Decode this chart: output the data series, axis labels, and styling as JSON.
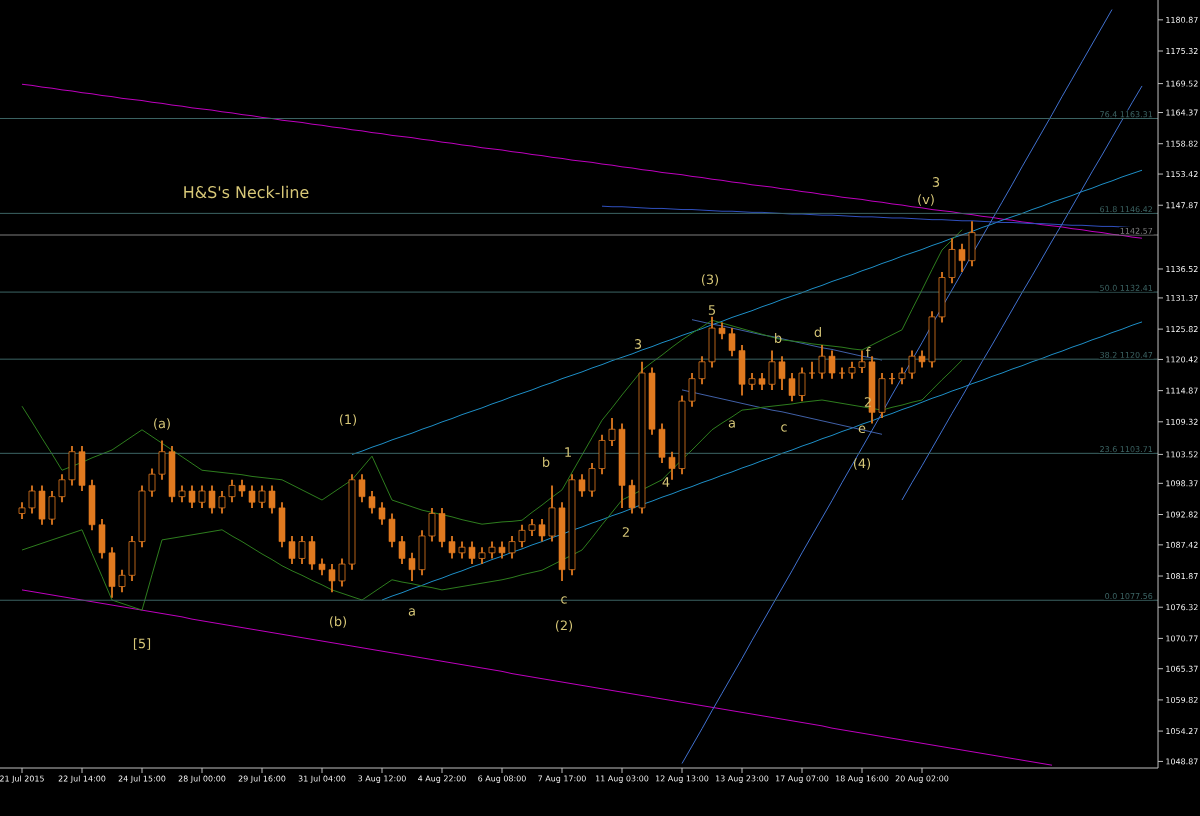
{
  "chart_data": {
    "type": "candlestick",
    "color": "#e07a20",
    "categories": [
      "21 Jul 2015",
      null,
      null,
      null,
      null,
      null,
      "22 Jul 14:00",
      null,
      null,
      null,
      null,
      null,
      "24 Jul 15:00",
      null,
      null,
      null,
      null,
      null,
      "28 Jul 00:00",
      null,
      null,
      null,
      null,
      null,
      "29 Jul 16:00",
      null,
      null,
      null,
      null,
      null,
      "31 Jul 04:00",
      null,
      null,
      null,
      null,
      null,
      "3 Aug 12:00",
      null,
      null,
      null,
      null,
      null,
      "4 Aug 22:00",
      null,
      null,
      null,
      null,
      null,
      "6 Aug 08:00",
      null,
      null,
      null,
      null,
      null,
      "7 Aug 17:00",
      null,
      null,
      null,
      null,
      null,
      "11 Aug 03:00",
      null,
      null,
      null,
      null,
      null,
      "12 Aug 13:00",
      null,
      null,
      null,
      null,
      null,
      "13 Aug 23:00",
      null,
      null,
      null,
      null,
      null,
      "17 Aug 07:00",
      null,
      null,
      null,
      null,
      null,
      "18 Aug 16:00",
      null,
      null,
      null,
      null,
      null,
      "20 Aug 02:00",
      null,
      null,
      null,
      null,
      null,
      null,
      null,
      null,
      null,
      null,
      null,
      null,
      null,
      null,
      null,
      null,
      null,
      null,
      null,
      null,
      null,
      null
    ],
    "ohlc": [
      [
        1093,
        1095,
        1092,
        1094
      ],
      [
        1094,
        1098,
        1093,
        1097
      ],
      [
        1097,
        1098,
        1091,
        1092
      ],
      [
        1092,
        1097,
        1091,
        1096
      ],
      [
        1096,
        1100,
        1095,
        1099
      ],
      [
        1099,
        1105,
        1098,
        1104
      ],
      [
        1104,
        1105,
        1097,
        1098
      ],
      [
        1098,
        1099,
        1090,
        1091
      ],
      [
        1091,
        1092,
        1085,
        1086
      ],
      [
        1086,
        1087,
        1078,
        1080
      ],
      [
        1080,
        1083,
        1079,
        1082
      ],
      [
        1082,
        1089,
        1081,
        1088
      ],
      [
        1088,
        1098,
        1087,
        1097
      ],
      [
        1097,
        1101,
        1096,
        1100
      ],
      [
        1100,
        1106,
        1099,
        1104
      ],
      [
        1104,
        1105,
        1095,
        1096
      ],
      [
        1096,
        1098,
        1095,
        1097
      ],
      [
        1097,
        1098,
        1094,
        1095
      ],
      [
        1095,
        1098,
        1094,
        1097
      ],
      [
        1097,
        1098,
        1093,
        1094
      ],
      [
        1094,
        1097,
        1093,
        1096
      ],
      [
        1096,
        1099,
        1095,
        1098
      ],
      [
        1098,
        1099,
        1096,
        1097
      ],
      [
        1097,
        1098,
        1094,
        1095
      ],
      [
        1095,
        1098,
        1094,
        1097
      ],
      [
        1097,
        1098,
        1093,
        1094
      ],
      [
        1094,
        1095,
        1087,
        1088
      ],
      [
        1088,
        1089,
        1084,
        1085
      ],
      [
        1085,
        1089,
        1084,
        1088
      ],
      [
        1088,
        1089,
        1083,
        1084
      ],
      [
        1084,
        1085,
        1082,
        1083
      ],
      [
        1083,
        1084,
        1079,
        1081
      ],
      [
        1081,
        1085,
        1080,
        1084
      ],
      [
        1084,
        1100,
        1083,
        1099
      ],
      [
        1099,
        1100,
        1095,
        1096
      ],
      [
        1096,
        1097,
        1093,
        1094
      ],
      [
        1094,
        1095,
        1091,
        1092
      ],
      [
        1092,
        1093,
        1087,
        1088
      ],
      [
        1088,
        1089,
        1084,
        1085
      ],
      [
        1085,
        1086,
        1081,
        1083
      ],
      [
        1083,
        1090,
        1082,
        1089
      ],
      [
        1089,
        1094,
        1088,
        1093
      ],
      [
        1093,
        1094,
        1087,
        1088
      ],
      [
        1088,
        1089,
        1085,
        1086
      ],
      [
        1086,
        1088,
        1085,
        1087
      ],
      [
        1087,
        1088,
        1084,
        1085
      ],
      [
        1085,
        1087,
        1084,
        1086
      ],
      [
        1086,
        1088,
        1085,
        1087
      ],
      [
        1087,
        1088,
        1085,
        1086
      ],
      [
        1086,
        1089,
        1085,
        1088
      ],
      [
        1088,
        1091,
        1087,
        1090
      ],
      [
        1090,
        1092,
        1089,
        1091
      ],
      [
        1091,
        1092,
        1088,
        1089
      ],
      [
        1089,
        1098,
        1088,
        1094
      ],
      [
        1094,
        1095,
        1081,
        1083
      ],
      [
        1083,
        1100,
        1082,
        1099
      ],
      [
        1099,
        1100,
        1096,
        1097
      ],
      [
        1097,
        1102,
        1096,
        1101
      ],
      [
        1101,
        1107,
        1100,
        1106
      ],
      [
        1106,
        1110,
        1105,
        1108
      ],
      [
        1108,
        1109,
        1094,
        1098
      ],
      [
        1098,
        1099,
        1093,
        1094
      ],
      [
        1094,
        1120,
        1093,
        1118
      ],
      [
        1118,
        1119,
        1107,
        1108
      ],
      [
        1108,
        1109,
        1102,
        1103
      ],
      [
        1103,
        1104,
        1099,
        1101
      ],
      [
        1101,
        1114,
        1100,
        1113
      ],
      [
        1113,
        1118,
        1112,
        1117
      ],
      [
        1117,
        1121,
        1116,
        1120
      ],
      [
        1120,
        1128,
        1119,
        1126
      ],
      [
        1126,
        1127,
        1124,
        1125
      ],
      [
        1125,
        1126,
        1121,
        1122
      ],
      [
        1122,
        1123,
        1114,
        1116
      ],
      [
        1116,
        1118,
        1115,
        1117
      ],
      [
        1117,
        1118,
        1115,
        1116
      ],
      [
        1116,
        1122,
        1115,
        1120
      ],
      [
        1120,
        1121,
        1115,
        1117
      ],
      [
        1117,
        1118,
        1113,
        1114
      ],
      [
        1114,
        1119,
        1113,
        1118
      ],
      [
        1118,
        1120,
        1117,
        1118
      ],
      [
        1118,
        1123,
        1117,
        1121
      ],
      [
        1121,
        1122,
        1117,
        1118
      ],
      [
        1118,
        1119,
        1117,
        1118
      ],
      [
        1118,
        1120,
        1117,
        1119
      ],
      [
        1119,
        1122,
        1118,
        1120
      ],
      [
        1120,
        1121,
        1109,
        1111
      ],
      [
        1111,
        1118,
        1110,
        1117
      ],
      [
        1117,
        1118,
        1116,
        1117
      ],
      [
        1117,
        1119,
        1116,
        1118
      ],
      [
        1118,
        1122,
        1117,
        1121
      ],
      [
        1121,
        1122,
        1119,
        1120
      ],
      [
        1120,
        1129,
        1119,
        1128
      ],
      [
        1128,
        1136,
        1127,
        1135
      ],
      [
        1135,
        1142,
        1134,
        1140
      ],
      [
        1140,
        1141,
        1136,
        1138
      ],
      [
        1138,
        1145,
        1137,
        1143
      ],
      null,
      null,
      null,
      null,
      null,
      null,
      null,
      null,
      null,
      null,
      null,
      null,
      null,
      null,
      null,
      null,
      null
    ],
    "series": [
      {
        "type": "line",
        "color": "#c000c0",
        "values": [
          1169.4,
          1169.2,
          1168.9,
          1168.7,
          1168.4,
          1168.2,
          1167.9,
          1167.7,
          1167.4,
          1167.2,
          1166.9,
          1166.7,
          1166.5,
          1166.2,
          1166.0,
          1165.7,
          1165.5,
          1165.2,
          1165.0,
          1164.8,
          1164.5,
          1164.3,
          1164.0,
          1163.8,
          1163.5,
          1163.3,
          1163.0,
          1162.8,
          1162.6,
          1162.3,
          1162.1,
          1161.8,
          1161.6,
          1161.3,
          1161.1,
          1160.8,
          1160.6,
          1160.3,
          1160.1,
          1159.9,
          1159.6,
          1159.4,
          1159.1,
          1158.9,
          1158.6,
          1158.4,
          1158.1,
          1157.9,
          1157.7,
          1157.4,
          1157.2,
          1156.9,
          1156.7,
          1156.4,
          1156.2,
          1155.9,
          1155.7,
          1155.5,
          1155.2,
          1155.0,
          1154.7,
          1154.5,
          1154.2,
          1154.0,
          1153.7,
          1153.5,
          1153.3,
          1153.0,
          1152.8,
          1152.5,
          1152.3,
          1152.0,
          1151.8,
          1151.5,
          1151.3,
          1151.1,
          1150.8,
          1150.6,
          1150.3,
          1150.1,
          1149.8,
          1149.6,
          1149.3,
          1149.1,
          1148.9,
          1148.6,
          1148.4,
          1148.1,
          1147.9,
          1147.6,
          1147.4,
          1147.1,
          1146.9,
          1146.7,
          1146.4,
          1146.2,
          1145.9,
          1145.7,
          1145.4,
          1145.2,
          1144.9,
          1144.7,
          1144.4,
          1144.2,
          1144.0,
          1143.7,
          1143.5,
          1143.2,
          1143.0,
          1142.7,
          1142.5,
          1142.2,
          1142.0
        ]
      },
      {
        "type": "line",
        "color": "#c000c0",
        "values": [
          1079.4,
          1079.1,
          1078.8,
          1078.5,
          1078.2,
          1077.9,
          1077.6,
          1077.3,
          1077.0,
          1076.7,
          1076.4,
          1076.1,
          1075.8,
          1075.5,
          1075.2,
          1074.9,
          1074.6,
          1074.2,
          1073.9,
          1073.6,
          1073.3,
          1073.0,
          1072.7,
          1072.4,
          1072.1,
          1071.8,
          1071.5,
          1071.2,
          1070.9,
          1070.6,
          1070.3,
          1070.0,
          1069.7,
          1069.4,
          1069.1,
          1068.8,
          1068.5,
          1068.2,
          1067.9,
          1067.6,
          1067.3,
          1067.0,
          1066.7,
          1066.4,
          1066.1,
          1065.8,
          1065.5,
          1065.2,
          1064.9,
          1064.5,
          1064.2,
          1063.9,
          1063.6,
          1063.3,
          1063.0,
          1062.7,
          1062.4,
          1062.1,
          1061.8,
          1061.5,
          1061.2,
          1060.9,
          1060.6,
          1060.3,
          1060.0,
          1059.7,
          1059.4,
          1059.1,
          1058.8,
          1058.5,
          1058.2,
          1057.9,
          1057.6,
          1057.3,
          1057.0,
          1056.7,
          1056.4,
          1056.1,
          1055.8,
          1055.5,
          1055.2,
          1054.8,
          1054.5,
          1054.2,
          1053.9,
          1053.6,
          1053.3,
          1053.0,
          1052.7,
          1052.4,
          1052.1,
          1051.8,
          1051.5,
          1051.2,
          1050.9,
          1050.6,
          1050.3,
          1050.0,
          1049.7,
          1049.4,
          1049.1,
          1048.8,
          1048.5,
          1048.2,
          null,
          null,
          null,
          null,
          null,
          null,
          null,
          null,
          null
        ]
      },
      {
        "type": "line",
        "color": "#1e90c8",
        "values": [
          null,
          null,
          null,
          null,
          null,
          null,
          null,
          null,
          null,
          null,
          null,
          null,
          null,
          null,
          null,
          null,
          null,
          null,
          null,
          null,
          null,
          null,
          null,
          null,
          null,
          null,
          null,
          null,
          null,
          null,
          null,
          null,
          null,
          1103.5,
          1104.1,
          1104.8,
          1105.4,
          1106.1,
          1106.7,
          1107.3,
          1108.0,
          1108.6,
          1109.3,
          1109.9,
          1110.6,
          1111.2,
          1111.8,
          1112.5,
          1113.1,
          1113.8,
          1114.4,
          1115.0,
          1115.7,
          1116.3,
          1117.0,
          1117.6,
          1118.2,
          1118.9,
          1119.5,
          1120.2,
          1120.8,
          1121.4,
          1122.1,
          1122.7,
          1123.4,
          1124.0,
          1124.7,
          1125.3,
          1125.9,
          1126.6,
          1127.2,
          1127.9,
          1128.5,
          1129.1,
          1129.8,
          1130.4,
          1131.1,
          1131.7,
          1132.3,
          1133.0,
          1133.6,
          1134.3,
          1134.9,
          1135.5,
          1136.2,
          1136.8,
          1137.5,
          1138.1,
          1138.8,
          1139.4,
          1140.0,
          1140.7,
          1141.3,
          1142.0,
          1142.6,
          1143.2,
          1143.9,
          1144.5,
          1145.2,
          1145.8,
          1146.4,
          1147.1,
          1147.7,
          1148.4,
          1149.0,
          1149.6,
          1150.3,
          1150.9,
          1151.6,
          1152.2,
          1152.9,
          1153.5,
          1154.1
        ]
      },
      {
        "type": "line",
        "color": "#1e90c8",
        "values": [
          null,
          null,
          null,
          null,
          null,
          null,
          null,
          null,
          null,
          null,
          null,
          null,
          null,
          null,
          null,
          null,
          null,
          null,
          null,
          null,
          null,
          null,
          null,
          null,
          null,
          null,
          null,
          null,
          null,
          null,
          null,
          null,
          null,
          null,
          null,
          null,
          1077.6,
          1078.3,
          1078.9,
          1079.6,
          1080.2,
          1080.9,
          1081.5,
          1082.2,
          1082.8,
          1083.5,
          1084.1,
          1084.8,
          1085.4,
          1086.1,
          1086.7,
          1087.4,
          1088.0,
          1088.7,
          1089.3,
          1090.0,
          1090.6,
          1091.3,
          1091.9,
          1092.6,
          1093.2,
          1093.9,
          1094.6,
          1095.2,
          1095.9,
          1096.5,
          1097.2,
          1097.8,
          1098.5,
          1099.1,
          1099.8,
          1100.4,
          1101.1,
          1101.7,
          1102.4,
          1103.0,
          1103.7,
          1104.3,
          1105.0,
          1105.6,
          1106.3,
          1106.9,
          1107.6,
          1108.2,
          1108.9,
          1109.5,
          1110.2,
          1110.8,
          1111.5,
          1112.1,
          1112.8,
          1113.5,
          1114.1,
          1114.8,
          1115.4,
          1116.1,
          1116.7,
          1117.4,
          1118.0,
          1118.7,
          1119.3,
          1120.0,
          1120.6,
          1121.3,
          1121.9,
          1122.6,
          1123.2,
          1123.9,
          1124.5,
          1125.2,
          1125.8,
          1126.5,
          1127.1
        ]
      },
      {
        "type": "line",
        "color": "#4060a8",
        "values": [
          null,
          null,
          null,
          null,
          null,
          null,
          null,
          null,
          null,
          null,
          null,
          null,
          null,
          null,
          null,
          null,
          null,
          null,
          null,
          null,
          null,
          null,
          null,
          null,
          null,
          null,
          null,
          null,
          null,
          null,
          null,
          null,
          null,
          null,
          null,
          null,
          null,
          null,
          null,
          null,
          null,
          null,
          null,
          null,
          null,
          null,
          null,
          null,
          null,
          null,
          null,
          null,
          null,
          null,
          null,
          null,
          null,
          null,
          null,
          null,
          null,
          null,
          null,
          null,
          null,
          null,
          null,
          1127.5,
          1127.1,
          1126.7,
          1126.4,
          1126.0,
          1125.6,
          1125.2,
          1124.8,
          1124.5,
          1124.1,
          1123.7,
          1123.3,
          1122.9,
          1122.5,
          1122.2,
          1121.8,
          1121.4,
          1121.0,
          1120.7,
          1120.3,
          null,
          null,
          null,
          null,
          null,
          null,
          null,
          null,
          null,
          null,
          null,
          null,
          null,
          null,
          null,
          null,
          null,
          null,
          null,
          null,
          null,
          null,
          null,
          null,
          null,
          null
        ]
      },
      {
        "type": "line",
        "color": "#4060a8",
        "values": [
          null,
          null,
          null,
          null,
          null,
          null,
          null,
          null,
          null,
          null,
          null,
          null,
          null,
          null,
          null,
          null,
          null,
          null,
          null,
          null,
          null,
          null,
          null,
          null,
          null,
          null,
          null,
          null,
          null,
          null,
          null,
          null,
          null,
          null,
          null,
          null,
          null,
          null,
          null,
          null,
          null,
          null,
          null,
          null,
          null,
          null,
          null,
          null,
          null,
          null,
          null,
          null,
          null,
          null,
          null,
          null,
          null,
          null,
          null,
          null,
          null,
          null,
          null,
          null,
          null,
          null,
          1115.0,
          1114.6,
          1114.2,
          1113.8,
          1113.4,
          1113.0,
          1112.6,
          1112.2,
          1111.8,
          1111.4,
          1111.1,
          1110.7,
          1110.3,
          1109.9,
          1109.5,
          1109.1,
          1108.7,
          1108.3,
          1107.9,
          1107.5,
          1107.1,
          null,
          null,
          null,
          null,
          null,
          null,
          null,
          null,
          null,
          null,
          null,
          null,
          null,
          null,
          null,
          null,
          null,
          null,
          null,
          null,
          null,
          null,
          null,
          null,
          null,
          null
        ]
      },
      {
        "type": "line",
        "color": "#3050c0",
        "values": [
          null,
          null,
          null,
          null,
          null,
          null,
          null,
          null,
          null,
          null,
          null,
          null,
          null,
          null,
          null,
          null,
          null,
          null,
          null,
          null,
          null,
          null,
          null,
          null,
          null,
          null,
          null,
          null,
          null,
          null,
          null,
          null,
          null,
          null,
          null,
          null,
          null,
          null,
          null,
          null,
          null,
          null,
          null,
          null,
          null,
          null,
          null,
          null,
          null,
          null,
          null,
          null,
          null,
          null,
          null,
          null,
          null,
          null,
          1147.7,
          1147.6,
          1147.6,
          1147.5,
          1147.4,
          1147.3,
          1147.3,
          1147.2,
          1147.1,
          1147.1,
          1147.0,
          1146.9,
          1146.8,
          1146.8,
          1146.7,
          1146.6,
          1146.6,
          1146.5,
          1146.4,
          1146.3,
          1146.3,
          1146.2,
          1146.1,
          1146.1,
          1146.0,
          1145.9,
          1145.8,
          1145.8,
          1145.7,
          1145.6,
          1145.6,
          1145.5,
          1145.4,
          1145.3,
          1145.3,
          1145.2,
          1145.1,
          1145.1,
          1145.0,
          1144.9,
          1144.8,
          1144.8,
          1144.7,
          1144.6,
          1144.6,
          1144.5,
          1144.4,
          1144.3,
          1144.3,
          1144.2,
          1144.1,
          1144.1,
          1144.0,
          1143.9,
          1143.8
        ]
      },
      {
        "type": "line",
        "color": "#4070d0",
        "values": [
          null,
          null,
          null,
          null,
          null,
          null,
          null,
          null,
          null,
          null,
          null,
          null,
          null,
          null,
          null,
          null,
          null,
          null,
          null,
          null,
          null,
          null,
          null,
          null,
          null,
          null,
          null,
          null,
          null,
          null,
          null,
          null,
          null,
          null,
          null,
          null,
          null,
          null,
          null,
          null,
          null,
          null,
          null,
          null,
          null,
          null,
          null,
          null,
          null,
          null,
          null,
          null,
          null,
          null,
          null,
          null,
          null,
          null,
          null,
          null,
          null,
          null,
          null,
          null,
          null,
          null,
          1048.5,
          1051.6,
          1054.7,
          1057.9,
          1061.0,
          1064.1,
          1067.2,
          1070.4,
          1073.5,
          1076.6,
          1079.7,
          1082.8,
          1086.0,
          1089.1,
          1092.2,
          1095.3,
          1098.5,
          1101.6,
          1104.7,
          1107.8,
          1110.9,
          1114.1,
          1117.2,
          1120.3,
          1123.4,
          1126.6,
          1129.7,
          1132.8,
          1135.9,
          1139.1,
          1142.2,
          1145.3,
          1148.4,
          1151.5,
          1154.7,
          1157.8,
          1160.9,
          1164.0,
          1167.2,
          1170.3,
          1173.4,
          1176.5,
          1179.6,
          1182.7,
          null,
          null,
          null
        ]
      },
      {
        "type": "line",
        "color": "#4070d0",
        "values": [
          null,
          null,
          null,
          null,
          null,
          null,
          null,
          null,
          null,
          null,
          null,
          null,
          null,
          null,
          null,
          null,
          null,
          null,
          null,
          null,
          null,
          null,
          null,
          null,
          null,
          null,
          null,
          null,
          null,
          null,
          null,
          null,
          null,
          null,
          null,
          null,
          null,
          null,
          null,
          null,
          null,
          null,
          null,
          null,
          null,
          null,
          null,
          null,
          null,
          null,
          null,
          null,
          null,
          null,
          null,
          null,
          null,
          null,
          null,
          null,
          null,
          null,
          null,
          null,
          null,
          null,
          null,
          null,
          null,
          null,
          null,
          null,
          null,
          null,
          null,
          null,
          null,
          null,
          null,
          null,
          null,
          null,
          null,
          null,
          null,
          null,
          null,
          null,
          1095.4,
          1098.5,
          1101.5,
          1104.6,
          1107.7,
          1110.8,
          1113.8,
          1116.9,
          1120.0,
          1123.0,
          1126.1,
          1129.2,
          1132.3,
          1135.3,
          1138.4,
          1141.5,
          1144.5,
          1147.6,
          1150.7,
          1153.8,
          1156.8,
          1159.9,
          1163.0,
          1166.1,
          1169.1
        ]
      },
      {
        "type": "line",
        "color": "#2e7d1e",
        "values": [
          1112.1,
          1109.3,
          1106.4,
          1103.6,
          1100.7,
          1101.4,
          1102.1,
          1102.9,
          1103.6,
          1104.3,
          1105.5,
          1106.7,
          1107.9,
          1106.7,
          1105.5,
          1104.3,
          1103.1,
          1101.9,
          1100.7,
          1100.5,
          1100.3,
          1100.1,
          1099.9,
          1099.6,
          1099.4,
          1099.2,
          1099.0,
          1098.1,
          1097.2,
          1096.3,
          1095.4,
          1096.6,
          1097.8,
          1099.0,
          1101.1,
          1103.2,
          1099.3,
          1095.4,
          1094.8,
          1094.2,
          1093.6,
          1093.2,
          1092.8,
          1092.4,
          1091.9,
          1091.5,
          1091.1,
          1091.3,
          1091.5,
          1091.6,
          1091.8,
          1093.2,
          1094.5,
          1095.9,
          1097.2,
          1100.3,
          1103.4,
          1106.5,
          1109.6,
          1111.8,
          1114.1,
          1116.3,
          1118.5,
          1119.9,
          1121.2,
          1122.6,
          1123.9,
          1125.1,
          1126.2,
          1127.4,
          1126.9,
          1126.4,
          1125.9,
          1125.4,
          1124.9,
          1124.4,
          1123.9,
          1123.7,
          1123.5,
          1123.2,
          1123.0,
          1122.8,
          1122.6,
          1122.3,
          1122.1,
          1123.0,
          1123.9,
          1124.8,
          1125.7,
          1129.3,
          1132.8,
          1136.4,
          1139.9,
          1141.7,
          1143.5,
          null,
          null,
          null,
          null,
          null,
          null,
          null,
          null,
          null,
          null,
          null,
          null,
          null,
          null,
          null,
          null,
          null,
          null
        ]
      },
      {
        "type": "line",
        "color": "#2e7d1e",
        "values": [
          1086.5,
          1087.1,
          1087.7,
          1088.3,
          1088.9,
          1089.5,
          1090.1,
          1085.9,
          1081.8,
          1077.6,
          1077.0,
          1076.4,
          1075.8,
          1082.1,
          1088.3,
          1088.6,
          1088.9,
          1089.2,
          1089.5,
          1089.8,
          1090.1,
          1089.0,
          1088.0,
          1086.9,
          1085.8,
          1084.8,
          1083.7,
          1082.8,
          1082.0,
          1081.1,
          1080.3,
          1079.4,
          1078.8,
          1078.2,
          1077.6,
          1078.8,
          1080.0,
          1081.2,
          1080.8,
          1080.5,
          1080.1,
          1079.8,
          1079.4,
          1079.7,
          1080.0,
          1080.3,
          1080.6,
          1080.9,
          1081.2,
          1081.6,
          1082.1,
          1082.5,
          1082.9,
          1083.8,
          1084.7,
          1085.6,
          1086.5,
          1088.7,
          1091.0,
          1093.2,
          1095.4,
          1096.3,
          1097.2,
          1098.1,
          1099.0,
          1100.8,
          1102.6,
          1104.3,
          1106.1,
          1107.9,
          1109.1,
          1110.2,
          1111.4,
          1111.6,
          1111.9,
          1112.1,
          1112.3,
          1112.5,
          1112.8,
          1113.0,
          1113.2,
          1112.9,
          1112.6,
          1112.3,
          1112.0,
          1111.7,
          1111.4,
          1111.9,
          1112.3,
          1112.8,
          1113.2,
          1115.0,
          1116.8,
          1118.5,
          1120.3,
          null,
          null,
          null,
          null,
          null,
          null,
          null,
          null,
          null,
          null,
          null,
          null,
          null,
          null,
          null,
          null,
          null,
          null
        ]
      }
    ],
    "ylim": [
      1047.7,
      1184.4
    ],
    "yticks": [
      1180.87,
      1175.32,
      1169.52,
      1164.37,
      1158.82,
      1153.42,
      1147.87,
      1136.52,
      1131.37,
      1125.82,
      1120.42,
      1114.87,
      1109.32,
      1103.52,
      1098.37,
      1092.82,
      1087.42,
      1081.87,
      1076.32,
      1070.77,
      1065.37,
      1059.82,
      1054.27,
      1048.87
    ],
    "ref_lines": [
      {
        "axis": "y",
        "value": 1163.31,
        "label": "76.4 1163.31",
        "color": "#3c6464"
      },
      {
        "axis": "y",
        "value": 1146.42,
        "label": "61.8 1146.42",
        "color": "#3c6464"
      },
      {
        "axis": "y",
        "value": 1142.57,
        "label": "1142.57",
        "color": "#808080"
      },
      {
        "axis": "y",
        "value": 1132.41,
        "label": "50.0 1132.41",
        "color": "#3c6464"
      },
      {
        "axis": "y",
        "value": 1120.47,
        "label": "38.2 1120.47",
        "color": "#3c6464"
      },
      {
        "axis": "y",
        "value": 1103.71,
        "label": "23.6 1103.71",
        "color": "#3c6464"
      },
      {
        "axis": "y",
        "value": 1077.56,
        "label": "0.0 1077.56",
        "color": "#3c6464"
      }
    ],
    "annotations": [
      "H&S's Neck-line",
      "[5]",
      "(a)",
      "(b)",
      "(1)",
      "a",
      "b",
      "1",
      "c",
      "(2)",
      "2",
      "3",
      "4",
      "(3)",
      {
        "text": "5",
        "y": 1128
      },
      "a",
      "b",
      "c",
      "d",
      "f",
      {
        "text": "e",
        "y": 1109
      },
      "(4)",
      "2",
      "3",
      "(v)"
    ]
  }
}
